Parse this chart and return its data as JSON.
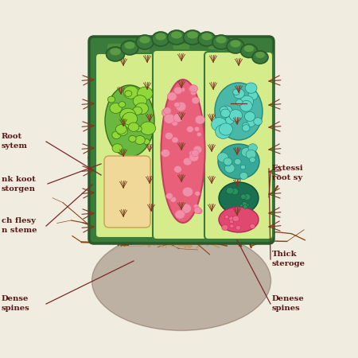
{
  "bg_color": "#f0ece0",
  "cactus_body_color": "#3a7a3a",
  "cactus_body_dark": "#2a5a2a",
  "cactus_light_green": "#7abf4a",
  "cactus_pale_green": "#d4ec8a",
  "inner_pink": "#e8607a",
  "inner_pink_light": "#f8a0b0",
  "inner_teal": "#4ab8a8",
  "inner_green_cells": "#6ab840",
  "inner_orange": "#f0d898",
  "spine_color": "#7a3a20",
  "root_color": "#8b4513",
  "root_light": "#c8956a",
  "text_color": "#5a1a1a",
  "label_line_color": "#7a2a2a",
  "thick_flesy_0": "ch flesy",
  "thick_flesy_1": "n steme",
  "bk_root_0": "nk koot",
  "bk_root_1": "storgen",
  "root_system_0": "Root",
  "root_system_1": "sytem",
  "dense_spines_left_0": "Dense",
  "dense_spines_left_1": "spines",
  "thick_steroge_0": "Thick",
  "thick_steroge_1": "steroge",
  "extensi_root_0": "Extessi",
  "extensi_root_1": "root sy",
  "dense_spines_right_0": "Denese",
  "dense_spines_right_1": "spines"
}
